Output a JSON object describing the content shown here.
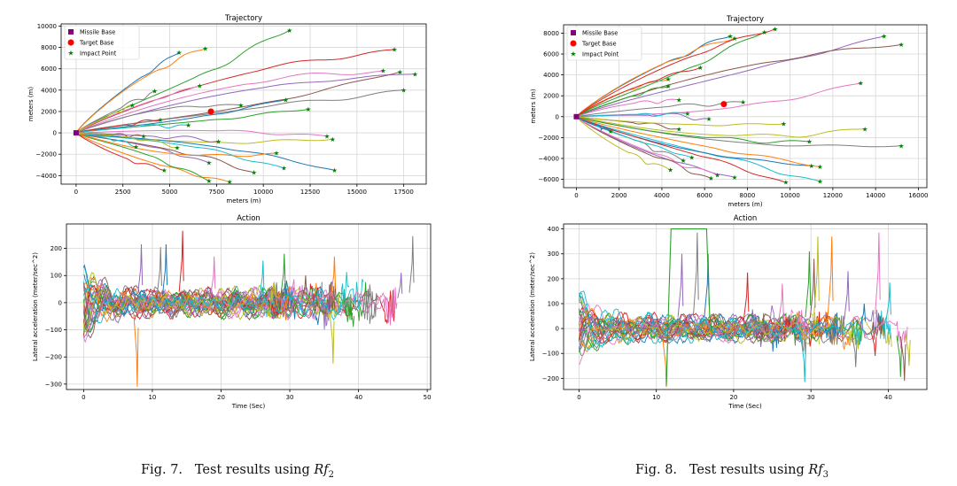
{
  "figures": [
    {
      "caption": {
        "label": "Fig. 7.",
        "text": "Test results using",
        "math_base": "Rf",
        "math_sub": "2"
      },
      "trajectory": {
        "title": "Trajectory",
        "xlabel": "meters (m)",
        "ylabel": "meters (m)",
        "xticks": [
          "0",
          "2500",
          "5000",
          "7500",
          "10000",
          "12500",
          "15000",
          "17500"
        ],
        "yticks": [
          "−4000",
          "−2000",
          "0",
          "2000",
          "4000",
          "6000",
          "8000",
          "10000"
        ],
        "legend": [
          "Missile Base",
          "Target Base",
          "Impact Point"
        ]
      },
      "action": {
        "title": "Action",
        "xlabel": "Time (Sec)",
        "ylabel": "Lateral acceleration (meter/sec^2)",
        "xticks": [
          "0",
          "10",
          "20",
          "30",
          "40",
          "50"
        ],
        "yticks": [
          "−300",
          "−200",
          "−100",
          "0",
          "100",
          "200"
        ]
      }
    },
    {
      "caption": {
        "label": "Fig. 8.",
        "text": "Test results using",
        "math_base": "Rf",
        "math_sub": "3"
      },
      "trajectory": {
        "title": "Trajectory",
        "xlabel": "meters (m)",
        "ylabel": "meters (m)",
        "xticks": [
          "0",
          "2000",
          "4000",
          "6000",
          "8000",
          "10000",
          "12000",
          "14000",
          "16000"
        ],
        "yticks": [
          "−6000",
          "−4000",
          "−2000",
          "0",
          "2000",
          "4000",
          "6000",
          "8000"
        ],
        "legend": [
          "Missile Base",
          "Target Base",
          "Impact Point"
        ]
      },
      "action": {
        "title": "Action",
        "xlabel": "Time (Sec)",
        "ylabel": "Lateral acceleration (meter/sec^2)",
        "xticks": [
          "0",
          "10",
          "20",
          "30",
          "40"
        ],
        "yticks": [
          "−200",
          "−100",
          "0",
          "100",
          "200",
          "300",
          "400"
        ]
      }
    }
  ],
  "palette": [
    "#1f77b4",
    "#ff7f0e",
    "#2ca02c",
    "#d62728",
    "#9467bd",
    "#8c564b",
    "#e377c2",
    "#7f7f7f",
    "#bcbd22",
    "#17becf"
  ],
  "marker_colors": {
    "missile_base": "#800080",
    "target_base": "#ff0000",
    "impact_point": "#008000"
  },
  "chart_data": [
    {
      "type": "line",
      "panel": "Fig. 7 Trajectory",
      "title": "Trajectory",
      "xlabel": "meters (m)",
      "ylabel": "meters (m)",
      "xlim": [
        -800,
        18700
      ],
      "ylim": [
        -4800,
        10200
      ],
      "grid": true,
      "legend_position": "top-left",
      "missile_base": [
        0,
        0
      ],
      "target_base": [
        7200,
        2000
      ],
      "impact_points": [
        [
          5500,
          7500
        ],
        [
          6900,
          7900
        ],
        [
          11400,
          9600
        ],
        [
          17000,
          7800
        ],
        [
          18100,
          5500
        ],
        [
          17300,
          5700
        ],
        [
          16400,
          5800
        ],
        [
          17500,
          4000
        ],
        [
          13700,
          -600
        ],
        [
          11100,
          -3300
        ],
        [
          13800,
          -3500
        ],
        [
          8200,
          -4600
        ],
        [
          7100,
          -4500
        ],
        [
          4700,
          -3500
        ],
        [
          7100,
          -2800
        ],
        [
          9500,
          -3700
        ],
        [
          6600,
          4400
        ],
        [
          4200,
          3900
        ],
        [
          3000,
          2600
        ],
        [
          3200,
          -1300
        ],
        [
          11200,
          3100
        ],
        [
          10700,
          -1900
        ],
        [
          12400,
          2200
        ],
        [
          4500,
          1200
        ],
        [
          7600,
          -800
        ],
        [
          3600,
          -300
        ],
        [
          13400,
          -300
        ],
        [
          8800,
          2600
        ],
        [
          5400,
          -1400
        ],
        [
          6000,
          700
        ]
      ]
    },
    {
      "type": "line",
      "panel": "Fig. 7 Action",
      "title": "Action",
      "xlabel": "Time (Sec)",
      "ylabel": "Lateral acceleration (meter/sec^2)",
      "xlim": [
        -2.5,
        50.5
      ],
      "ylim": [
        -320,
        290
      ],
      "grid": true,
      "envelope": {
        "t_start": 0,
        "initial_peak": 165,
        "typical_range": [
          -120,
          130
        ],
        "t_end": 48
      },
      "spikes": [
        [
          7.8,
          -310
        ],
        [
          8.4,
          215
        ],
        [
          11.2,
          205
        ],
        [
          12.0,
          215
        ],
        [
          14.4,
          265
        ],
        [
          19.0,
          170
        ],
        [
          26.1,
          155
        ],
        [
          29.2,
          180
        ],
        [
          32.3,
          100
        ],
        [
          36.3,
          -225
        ],
        [
          36.5,
          170
        ],
        [
          46.2,
          110
        ],
        [
          47.9,
          245
        ]
      ]
    },
    {
      "type": "line",
      "panel": "Fig. 8 Trajectory",
      "title": "Trajectory",
      "xlabel": "meters (m)",
      "ylabel": "meters (m)",
      "xlim": [
        -600,
        16400
      ],
      "ylim": [
        -6800,
        8800
      ],
      "grid": true,
      "legend_position": "top-left",
      "missile_base": [
        0,
        0
      ],
      "target_base": [
        6900,
        1200
      ],
      "impact_points": [
        [
          7200,
          7700
        ],
        [
          7400,
          7500
        ],
        [
          8800,
          8100
        ],
        [
          9300,
          8400
        ],
        [
          14400,
          7700
        ],
        [
          15200,
          6900
        ],
        [
          13300,
          3200
        ],
        [
          15200,
          -2800
        ],
        [
          13500,
          -1200
        ],
        [
          11400,
          -6200
        ],
        [
          11000,
          -4700
        ],
        [
          11400,
          -4800
        ],
        [
          10900,
          -2400
        ],
        [
          9800,
          -6300
        ],
        [
          7400,
          -5800
        ],
        [
          6300,
          -5900
        ],
        [
          6600,
          -5600
        ],
        [
          5000,
          -4200
        ],
        [
          4400,
          -5100
        ],
        [
          5400,
          -3900
        ],
        [
          1600,
          -1400
        ],
        [
          4300,
          3600
        ],
        [
          4300,
          2900
        ],
        [
          5800,
          4700
        ],
        [
          6200,
          -200
        ],
        [
          4800,
          -1200
        ],
        [
          4800,
          1600
        ],
        [
          7800,
          1400
        ],
        [
          9700,
          -700
        ],
        [
          5200,
          300
        ]
      ]
    },
    {
      "type": "line",
      "panel": "Fig. 8 Action",
      "title": "Action",
      "xlabel": "Time (Sec)",
      "ylabel": "Lateral acceleration (meter/sec^2)",
      "xlim": [
        -2,
        45
      ],
      "ylim": [
        -245,
        420
      ],
      "grid": true,
      "saturation": {
        "t_start": 11.9,
        "t_end": 16.5,
        "value": 400
      },
      "spikes": [
        [
          11.3,
          -235
        ],
        [
          13.3,
          300
        ],
        [
          15.3,
          385
        ],
        [
          16.7,
          300
        ],
        [
          21.8,
          225
        ],
        [
          26.3,
          180
        ],
        [
          29.2,
          -215
        ],
        [
          29.8,
          310
        ],
        [
          30.4,
          280
        ],
        [
          30.9,
          370
        ],
        [
          32.7,
          370
        ],
        [
          34.8,
          230
        ],
        [
          35.8,
          -155
        ],
        [
          36.9,
          100
        ],
        [
          38.3,
          -110
        ],
        [
          38.8,
          385
        ],
        [
          40.2,
          185
        ],
        [
          41.6,
          -195
        ],
        [
          42.1,
          -210
        ],
        [
          42.7,
          -150
        ]
      ],
      "t_end": 43
    }
  ]
}
